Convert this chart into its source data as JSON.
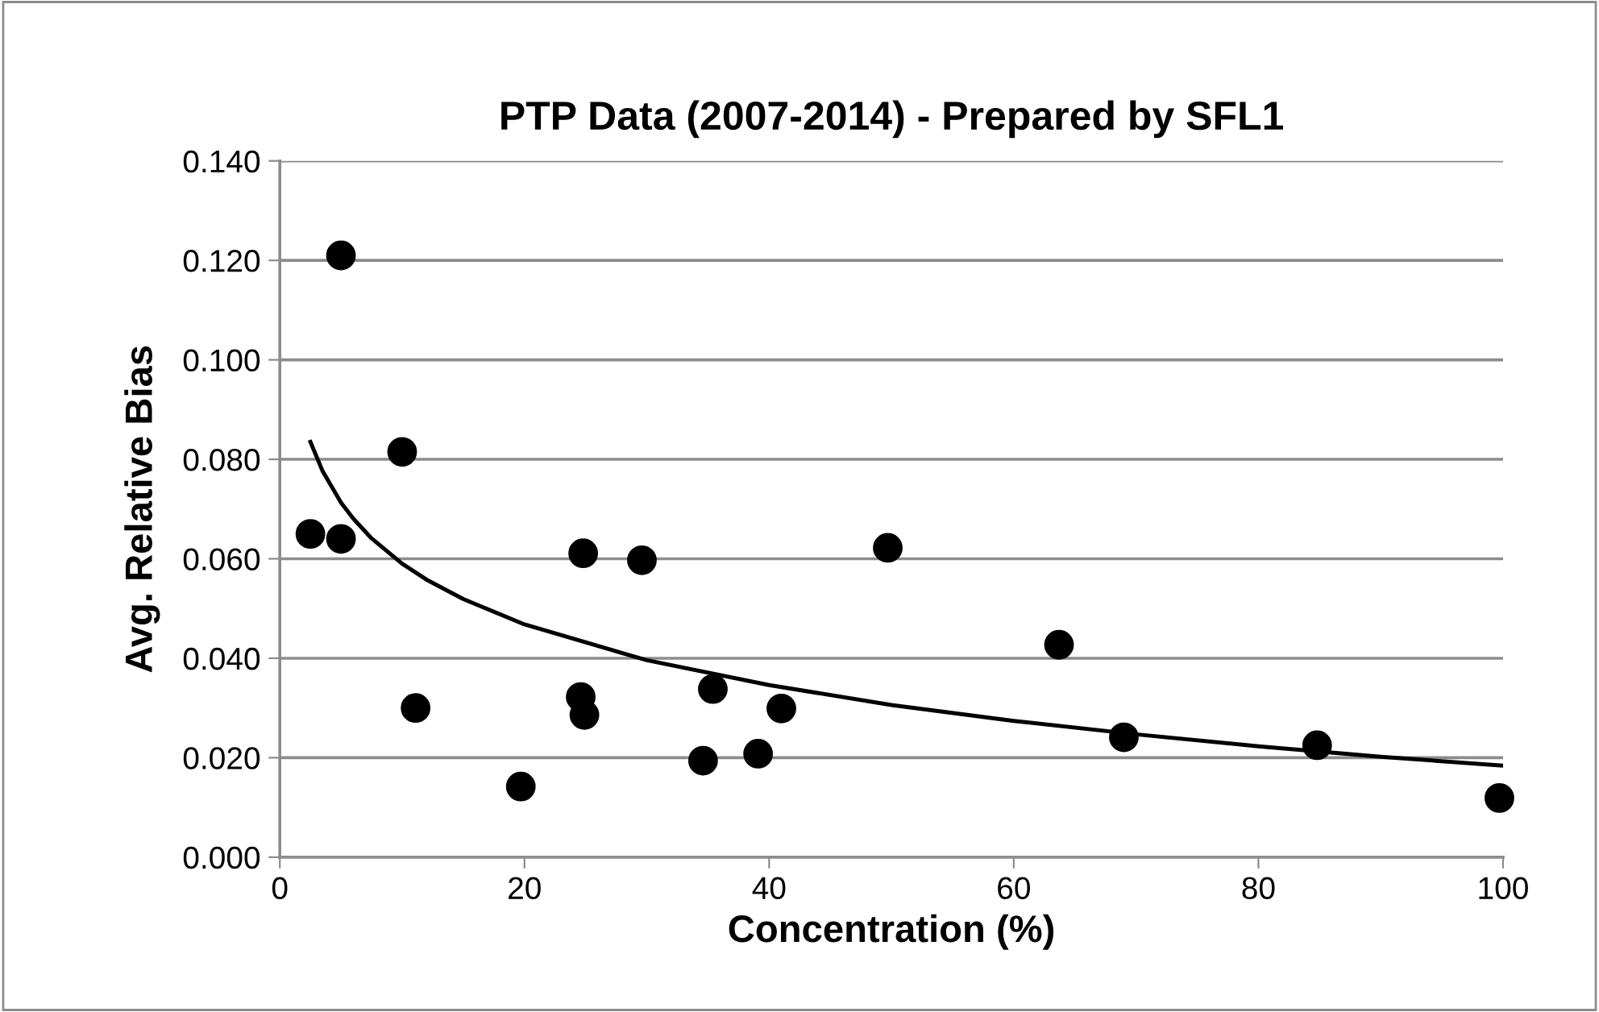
{
  "chart_data": {
    "type": "scatter",
    "title": "PTP Data (2007-2014) - Prepared by SFL1",
    "xlabel": "Concentration (%)",
    "ylabel": "Avg. Relative Bias",
    "xlim": [
      0,
      100
    ],
    "xticks": [
      0,
      20,
      40,
      60,
      80,
      100
    ],
    "ylim": [
      0,
      0.14
    ],
    "yticks": [
      {
        "value": 0,
        "label": "0.000"
      },
      {
        "value": 0.02,
        "label": "0.020"
      },
      {
        "value": 0.04,
        "label": "0.040"
      },
      {
        "value": 0.06,
        "label": "0.060"
      },
      {
        "value": 0.08,
        "label": "0.080"
      },
      {
        "value": 0.1,
        "label": "0.100"
      },
      {
        "value": 0.12,
        "label": "0.120"
      },
      {
        "value": 0.14,
        "label": "0.140"
      }
    ],
    "grid": "y",
    "series": [
      {
        "color": "#000000",
        "marker": "circle",
        "x": [
          5,
          2.5,
          5,
          10,
          11.1,
          19.7,
          24.8,
          24.6,
          24.9,
          29.6,
          35.4,
          34.6,
          39.1,
          41.0,
          49.7,
          63.7,
          69.0,
          84.8,
          99.7
        ],
        "values": [
          0.121,
          0.065,
          0.064,
          0.0815,
          0.03,
          0.0142,
          0.0611,
          0.0322,
          0.0286,
          0.0597,
          0.0338,
          0.0194,
          0.0208,
          0.0299,
          0.0622,
          0.0427,
          0.0241,
          0.0225,
          0.0119
        ]
      },
      {
        "type": "line",
        "color": "#000000",
        "marker": "none",
        "line_style": "solid",
        "x": [
          2.5,
          3.5,
          5,
          6,
          7.5,
          10,
          12,
          15,
          20,
          30,
          40,
          50,
          60,
          70,
          80,
          90,
          100
        ],
        "values": [
          0.0835,
          0.0776,
          0.0713,
          0.0681,
          0.0641,
          0.059,
          0.0558,
          0.0519,
          0.0468,
          0.0396,
          0.0346,
          0.0306,
          0.0274,
          0.0247,
          0.0223,
          0.0202,
          0.0184
        ]
      }
    ]
  }
}
